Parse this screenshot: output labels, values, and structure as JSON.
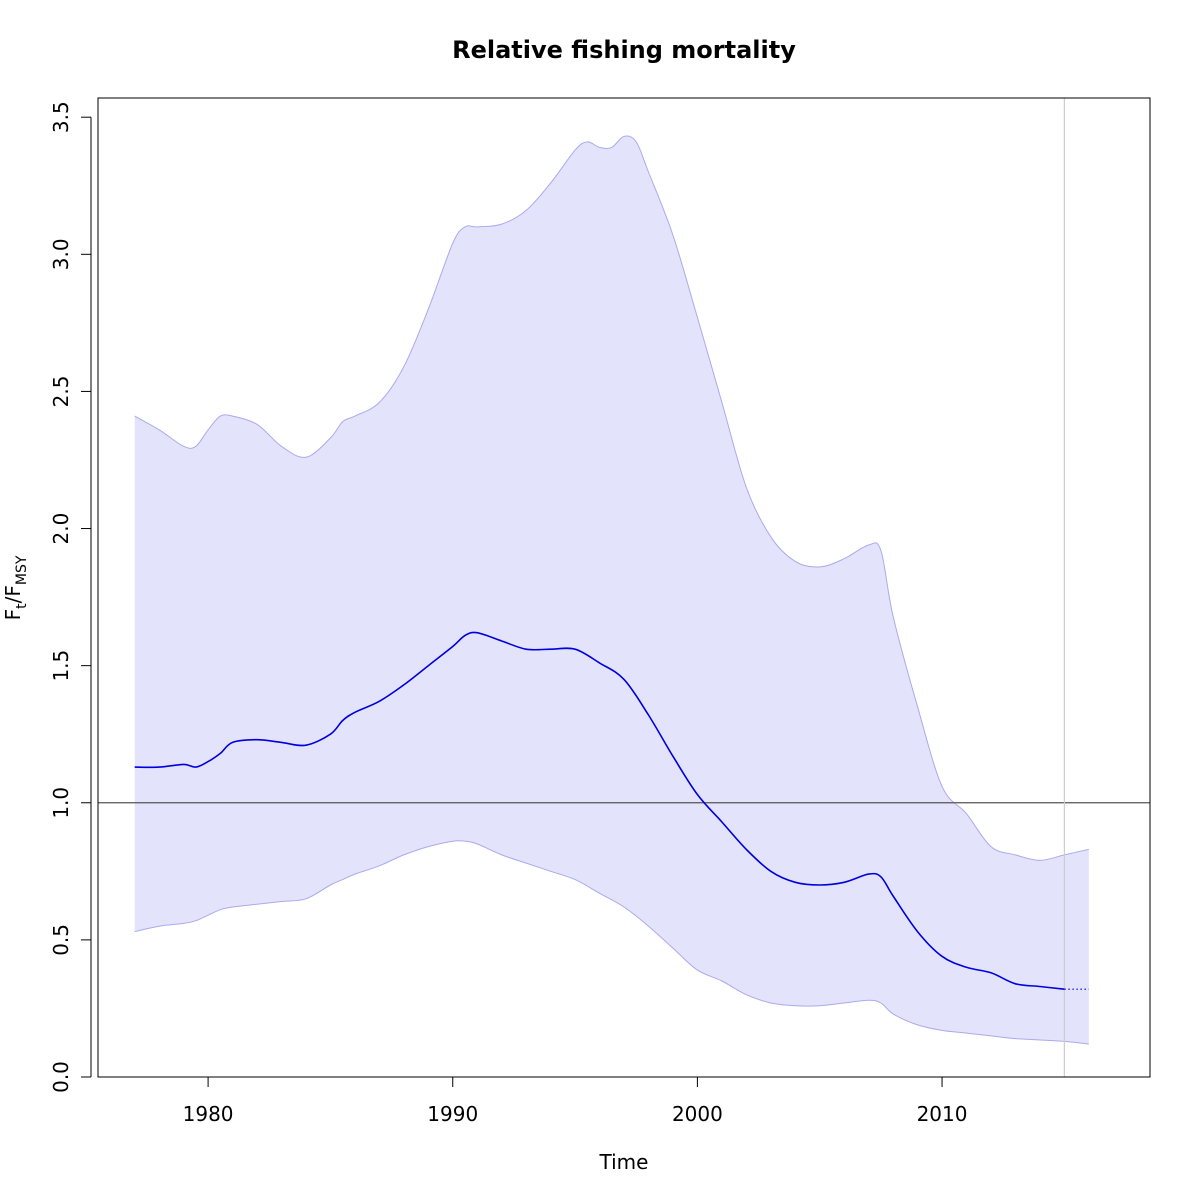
{
  "chart_data": {
    "type": "area",
    "title": "Relative fishing mortality",
    "xlabel": "Time",
    "ylabel_main": "F",
    "ylabel_sub1": "t",
    "ylabel_slash": "/F",
    "ylabel_sub2": "MSY",
    "xlim": [
      1975.5,
      2018.5
    ],
    "ylim": [
      0.0,
      3.57
    ],
    "x_ticks": [
      1980,
      1990,
      2000,
      2010
    ],
    "y_ticks": [
      0.0,
      0.5,
      1.0,
      1.5,
      2.0,
      2.5,
      3.0,
      3.5
    ],
    "y_tick_labels": [
      "0.0",
      "0.5",
      "1.0",
      "1.5",
      "2.0",
      "2.5",
      "3.0",
      "3.5"
    ],
    "reference_line_y": 1.0,
    "vertical_line_x": 2015,
    "estimate_end_x": 2015,
    "colors": {
      "band_fill": "#e3e3fc",
      "band_edge": "#aaaaee",
      "line": "#0000dd",
      "refline": "#555555",
      "vline": "#cccccc"
    },
    "series": [
      {
        "x": [
          1977.0,
          1978.0,
          1979.0,
          1979.5,
          1980.0,
          1980.5,
          1981.0,
          1982.0,
          1983.0,
          1984.0,
          1985.0,
          1985.5,
          1986.0,
          1987.0,
          1988.0,
          1989.0,
          1990.0,
          1990.5,
          1991.0,
          1992.0,
          1993.0,
          1994.0,
          1995.0,
          1996.0,
          1997.0,
          1998.0,
          1999.0,
          2000.0,
          2001.0,
          2002.0,
          2003.0,
          2004.0,
          2005.0,
          2006.0,
          2007.0,
          2007.5,
          2008.0,
          2009.0,
          2010.0,
          2011.0,
          2012.0,
          2013.0,
          2014.0,
          2015.0
        ],
        "values": [
          1.13,
          1.13,
          1.14,
          1.13,
          1.15,
          1.18,
          1.22,
          1.23,
          1.22,
          1.21,
          1.25,
          1.3,
          1.33,
          1.37,
          1.43,
          1.5,
          1.57,
          1.61,
          1.62,
          1.59,
          1.56,
          1.56,
          1.56,
          1.51,
          1.45,
          1.32,
          1.17,
          1.03,
          0.93,
          0.83,
          0.75,
          0.71,
          0.7,
          0.71,
          0.74,
          0.73,
          0.66,
          0.53,
          0.44,
          0.4,
          0.38,
          0.34,
          0.33,
          0.32
        ]
      },
      {
        "x": [
          2015.0,
          2016.0
        ],
        "values": [
          0.32,
          0.32
        ]
      },
      {
        "x": [
          1977.0,
          1978.0,
          1979.0,
          1979.5,
          1980.0,
          1980.5,
          1981.0,
          1982.0,
          1983.0,
          1984.0,
          1985.0,
          1985.5,
          1986.0,
          1987.0,
          1988.0,
          1989.0,
          1990.0,
          1990.5,
          1991.0,
          1992.0,
          1993.0,
          1994.0,
          1995.0,
          1995.5,
          1996.0,
          1996.5,
          1997.0,
          1997.5,
          1998.0,
          1999.0,
          2000.0,
          2001.0,
          2002.0,
          2003.0,
          2004.0,
          2005.0,
          2006.0,
          2007.0,
          2007.5,
          2008.0,
          2009.0,
          2010.0,
          2011.0,
          2012.0,
          2013.0,
          2014.0,
          2015.0,
          2016.0
        ],
        "values": [
          2.41,
          2.36,
          2.3,
          2.3,
          2.36,
          2.41,
          2.41,
          2.38,
          2.3,
          2.26,
          2.33,
          2.39,
          2.41,
          2.46,
          2.59,
          2.8,
          3.04,
          3.1,
          3.1,
          3.11,
          3.16,
          3.26,
          3.38,
          3.41,
          3.39,
          3.39,
          3.43,
          3.41,
          3.3,
          3.07,
          2.77,
          2.46,
          2.15,
          1.97,
          1.88,
          1.86,
          1.89,
          1.94,
          1.92,
          1.68,
          1.35,
          1.06,
          0.96,
          0.84,
          0.81,
          0.79,
          0.81,
          0.83
        ]
      },
      {
        "x": [
          1977.0,
          1978.0,
          1979.0,
          1979.5,
          1980.0,
          1980.5,
          1981.0,
          1982.0,
          1983.0,
          1984.0,
          1985.0,
          1985.5,
          1986.0,
          1987.0,
          1988.0,
          1989.0,
          1990.0,
          1990.5,
          1991.0,
          1992.0,
          1993.0,
          1994.0,
          1995.0,
          1996.0,
          1997.0,
          1998.0,
          1999.0,
          2000.0,
          2001.0,
          2002.0,
          2003.0,
          2004.0,
          2005.0,
          2006.0,
          2007.0,
          2007.5,
          2008.0,
          2009.0,
          2010.0,
          2011.0,
          2012.0,
          2013.0,
          2014.0,
          2015.0,
          2016.0
        ],
        "values": [
          0.53,
          0.55,
          0.56,
          0.57,
          0.59,
          0.61,
          0.62,
          0.63,
          0.64,
          0.65,
          0.7,
          0.72,
          0.74,
          0.77,
          0.81,
          0.84,
          0.86,
          0.86,
          0.85,
          0.81,
          0.78,
          0.75,
          0.72,
          0.67,
          0.62,
          0.55,
          0.47,
          0.39,
          0.35,
          0.3,
          0.27,
          0.26,
          0.26,
          0.27,
          0.28,
          0.27,
          0.23,
          0.19,
          0.17,
          0.16,
          0.15,
          0.14,
          0.135,
          0.13,
          0.12
        ]
      }
    ]
  }
}
